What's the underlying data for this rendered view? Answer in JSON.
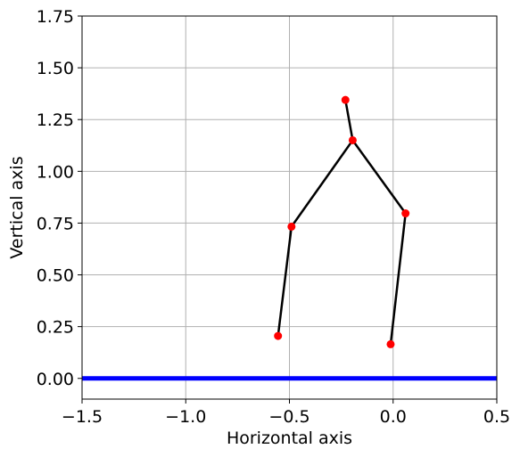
{
  "chart_data": {
    "type": "line",
    "xlabel": "Horizontal axis",
    "ylabel": "Vertical axis",
    "xlim": [
      -1.5,
      0.5
    ],
    "ylim": [
      -0.1,
      1.75
    ],
    "grid": true,
    "x_ticks": [
      -1.5,
      -1.0,
      -0.5,
      0.0,
      0.5
    ],
    "x_tick_labels": [
      "−1.5",
      "−1.0",
      "−0.5",
      "0.0",
      "0.5"
    ],
    "y_ticks": [
      0.0,
      0.25,
      0.5,
      0.75,
      1.0,
      1.25,
      1.5,
      1.75
    ],
    "y_tick_labels": [
      "0.00",
      "0.25",
      "0.50",
      "0.75",
      "1.00",
      "1.25",
      "1.50",
      "1.75"
    ],
    "ground_line": {
      "y": 0.0,
      "color": "#0000ff"
    },
    "points": [
      {
        "x": -0.23,
        "y": 1.345
      },
      {
        "x": -0.195,
        "y": 1.15
      },
      {
        "x": -0.49,
        "y": 0.733
      },
      {
        "x": -0.555,
        "y": 0.205
      },
      {
        "x": 0.06,
        "y": 0.797
      },
      {
        "x": -0.012,
        "y": 0.165
      }
    ],
    "segments": [
      [
        0,
        1
      ],
      [
        1,
        2
      ],
      [
        2,
        3
      ],
      [
        1,
        4
      ],
      [
        4,
        5
      ]
    ],
    "line_color": "#000000",
    "marker_color": "#ff0000"
  }
}
